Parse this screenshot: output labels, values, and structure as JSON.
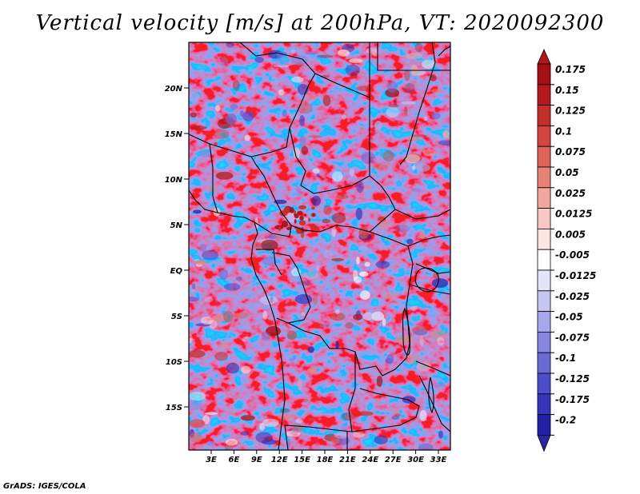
{
  "title": "Vertical velocity [m/s] at 200hPa, VT: 2020092300",
  "credit": "GrADS: IGES/COLA",
  "map": {
    "lat_labels": [
      "20N",
      "15N",
      "10N",
      "5N",
      "EQ",
      "5S",
      "10S",
      "15S"
    ],
    "lon_labels": [
      "3E",
      "6E",
      "9E",
      "12E",
      "15E",
      "18E",
      "21E",
      "24E",
      "27E",
      "30E",
      "33E"
    ]
  },
  "colorbar": {
    "levels": [
      {
        "label": "0.175",
        "color": "#a50f15"
      },
      {
        "label": "0.15",
        "color": "#b5191b"
      },
      {
        "label": "0.125",
        "color": "#c62e2a"
      },
      {
        "label": "0.1",
        "color": "#d6453f"
      },
      {
        "label": "0.075",
        "color": "#e06358"
      },
      {
        "label": "0.05",
        "color": "#ea8377"
      },
      {
        "label": "0.025",
        "color": "#f3a69d"
      },
      {
        "label": "0.0125",
        "color": "#f9c8c2"
      },
      {
        "label": "0.005",
        "color": "#fde6e2"
      },
      {
        "label": "-0.005",
        "color": "#ffffff"
      },
      {
        "label": "-0.0125",
        "color": "#e4e4fb"
      },
      {
        "label": "-0.025",
        "color": "#c6c6f4"
      },
      {
        "label": "-0.05",
        "color": "#a7a7ec"
      },
      {
        "label": "-0.075",
        "color": "#8787e2"
      },
      {
        "label": "-0.1",
        "color": "#6b6bd8"
      },
      {
        "label": "-0.125",
        "color": "#4e4ecc"
      },
      {
        "label": "-0.175",
        "color": "#3535bb"
      },
      {
        "label": "-0.2",
        "color": "#2121a6"
      }
    ],
    "top_color": "#b0171b",
    "bottom_color": "#27279e"
  }
}
